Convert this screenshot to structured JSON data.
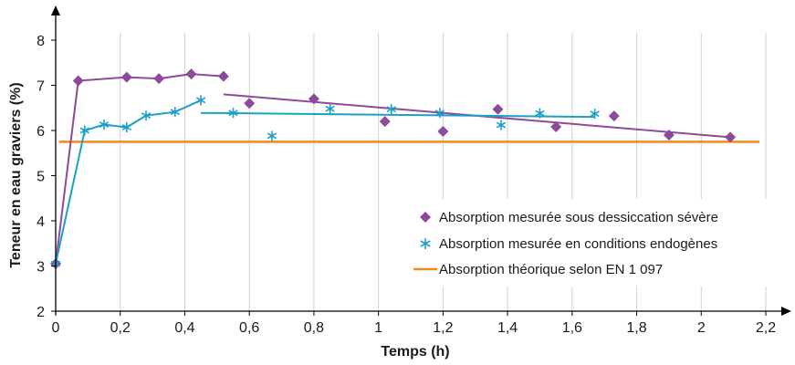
{
  "chart_data": {
    "type": "line",
    "title": "",
    "xlabel": "Temps (h)",
    "ylabel": "Teneur en eau graviers (%)",
    "xlim": [
      0,
      2.2
    ],
    "ylim": [
      2,
      8
    ],
    "xticks": [
      0,
      0.2,
      0.4,
      0.6,
      0.8,
      1,
      1.2,
      1.4,
      1.6,
      1.8,
      2,
      2.2
    ],
    "xtick_labels": [
      "0",
      "0,2",
      "0,4",
      "0,6",
      "0,8",
      "1",
      "1,2",
      "1,4",
      "1,6",
      "1,8",
      "2",
      "2,2"
    ],
    "yticks": [
      2,
      3,
      4,
      5,
      6,
      7,
      8
    ],
    "ytick_labels": [
      "2",
      "3",
      "4",
      "5",
      "6",
      "7",
      "8"
    ],
    "grid": {
      "vertical": true,
      "horizontal": false
    },
    "legend_position": "right",
    "series": [
      {
        "name": "Absorption mesurée sous dessiccation sévère",
        "color": "#8e4a9a",
        "marker": "diamond",
        "points": [
          [
            0,
            3.05
          ],
          [
            0.07,
            7.1
          ],
          [
            0.22,
            7.18
          ],
          [
            0.32,
            7.15
          ],
          [
            0.42,
            7.25
          ],
          [
            0.52,
            7.2
          ],
          [
            0.6,
            6.6
          ],
          [
            0.8,
            6.7
          ],
          [
            1.02,
            6.2
          ],
          [
            1.2,
            5.98
          ],
          [
            1.37,
            6.47
          ],
          [
            1.55,
            6.08
          ],
          [
            1.73,
            6.32
          ],
          [
            1.9,
            5.9
          ],
          [
            2.09,
            5.85
          ]
        ],
        "connect_count": 6,
        "trend": [
          [
            0.52,
            6.8
          ],
          [
            2.09,
            5.85
          ]
        ]
      },
      {
        "name": "Absorption mesurée en conditions endogènes",
        "color": "#1aa0c8",
        "marker": "asterisk",
        "points": [
          [
            0,
            3.05
          ],
          [
            0.09,
            6.0
          ],
          [
            0.15,
            6.13
          ],
          [
            0.22,
            6.07
          ],
          [
            0.28,
            6.33
          ],
          [
            0.37,
            6.41
          ],
          [
            0.45,
            6.67
          ],
          [
            0.55,
            6.39
          ],
          [
            0.67,
            5.88
          ],
          [
            0.85,
            6.48
          ],
          [
            1.04,
            6.47
          ],
          [
            1.19,
            6.39
          ],
          [
            1.38,
            6.12
          ],
          [
            1.5,
            6.38
          ],
          [
            1.67,
            6.37
          ]
        ],
        "connect_count": 7,
        "trend": [
          [
            0.45,
            6.39
          ],
          [
            1.67,
            6.3
          ]
        ]
      },
      {
        "name": "Absorption théorique selon EN 1 097",
        "color": "#f08a1c",
        "marker": "none",
        "value": 5.75,
        "x_range": [
          0.01,
          2.18
        ]
      }
    ]
  }
}
